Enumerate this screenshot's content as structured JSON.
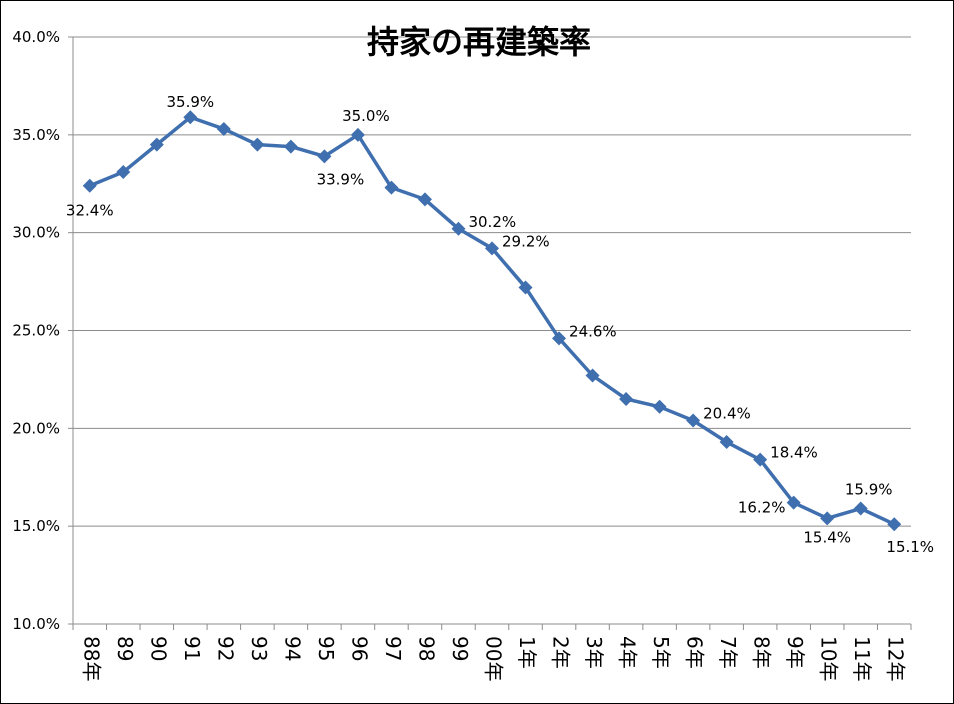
{
  "chart_data": {
    "type": "line",
    "title": "持家の再建築率",
    "xlabel": "",
    "ylabel": "",
    "ylim": [
      10,
      40
    ],
    "y_ticks": [
      10,
      15,
      20,
      25,
      30,
      35,
      40
    ],
    "y_tick_labels": [
      "10.0%",
      "15.0%",
      "20.0%",
      "25.0%",
      "30.0%",
      "35.0%",
      "40.0%"
    ],
    "grid": true,
    "legend": "none",
    "marker": "diamond",
    "categories": [
      "88年",
      "89",
      "90",
      "91",
      "92",
      "93",
      "94",
      "95",
      "96",
      "97",
      "98",
      "99",
      "00年",
      "1年",
      "2年",
      "3年",
      "4年",
      "5年",
      "6年",
      "7年",
      "8年",
      "9年",
      "10年",
      "11年",
      "12年"
    ],
    "series": [
      {
        "color": "#3f6fae",
        "values": [
          32.4,
          33.1,
          34.5,
          35.9,
          35.3,
          34.5,
          34.4,
          33.9,
          35.0,
          32.3,
          31.7,
          30.2,
          29.2,
          27.2,
          24.6,
          22.7,
          21.5,
          21.1,
          20.4,
          19.3,
          18.4,
          16.2,
          15.4,
          15.9,
          15.1
        ]
      }
    ],
    "data_labels": [
      {
        "index": 0,
        "text": "32.4%",
        "placement": "below-left"
      },
      {
        "index": 3,
        "text": "35.9%",
        "placement": "above"
      },
      {
        "index": 7,
        "text": "33.9%",
        "placement": "below-right"
      },
      {
        "index": 8,
        "text": "35.0%",
        "placement": "above-right"
      },
      {
        "index": 11,
        "text": "30.2%",
        "placement": "right"
      },
      {
        "index": 12,
        "text": "29.2%",
        "placement": "right"
      },
      {
        "index": 14,
        "text": "24.6%",
        "placement": "right"
      },
      {
        "index": 18,
        "text": "20.4%",
        "placement": "right"
      },
      {
        "index": 20,
        "text": "18.4%",
        "placement": "right"
      },
      {
        "index": 21,
        "text": "16.2%",
        "placement": "left"
      },
      {
        "index": 22,
        "text": "15.4%",
        "placement": "below"
      },
      {
        "index": 23,
        "text": "15.9%",
        "placement": "above-right"
      },
      {
        "index": 24,
        "text": "15.1%",
        "placement": "below-right"
      }
    ]
  }
}
